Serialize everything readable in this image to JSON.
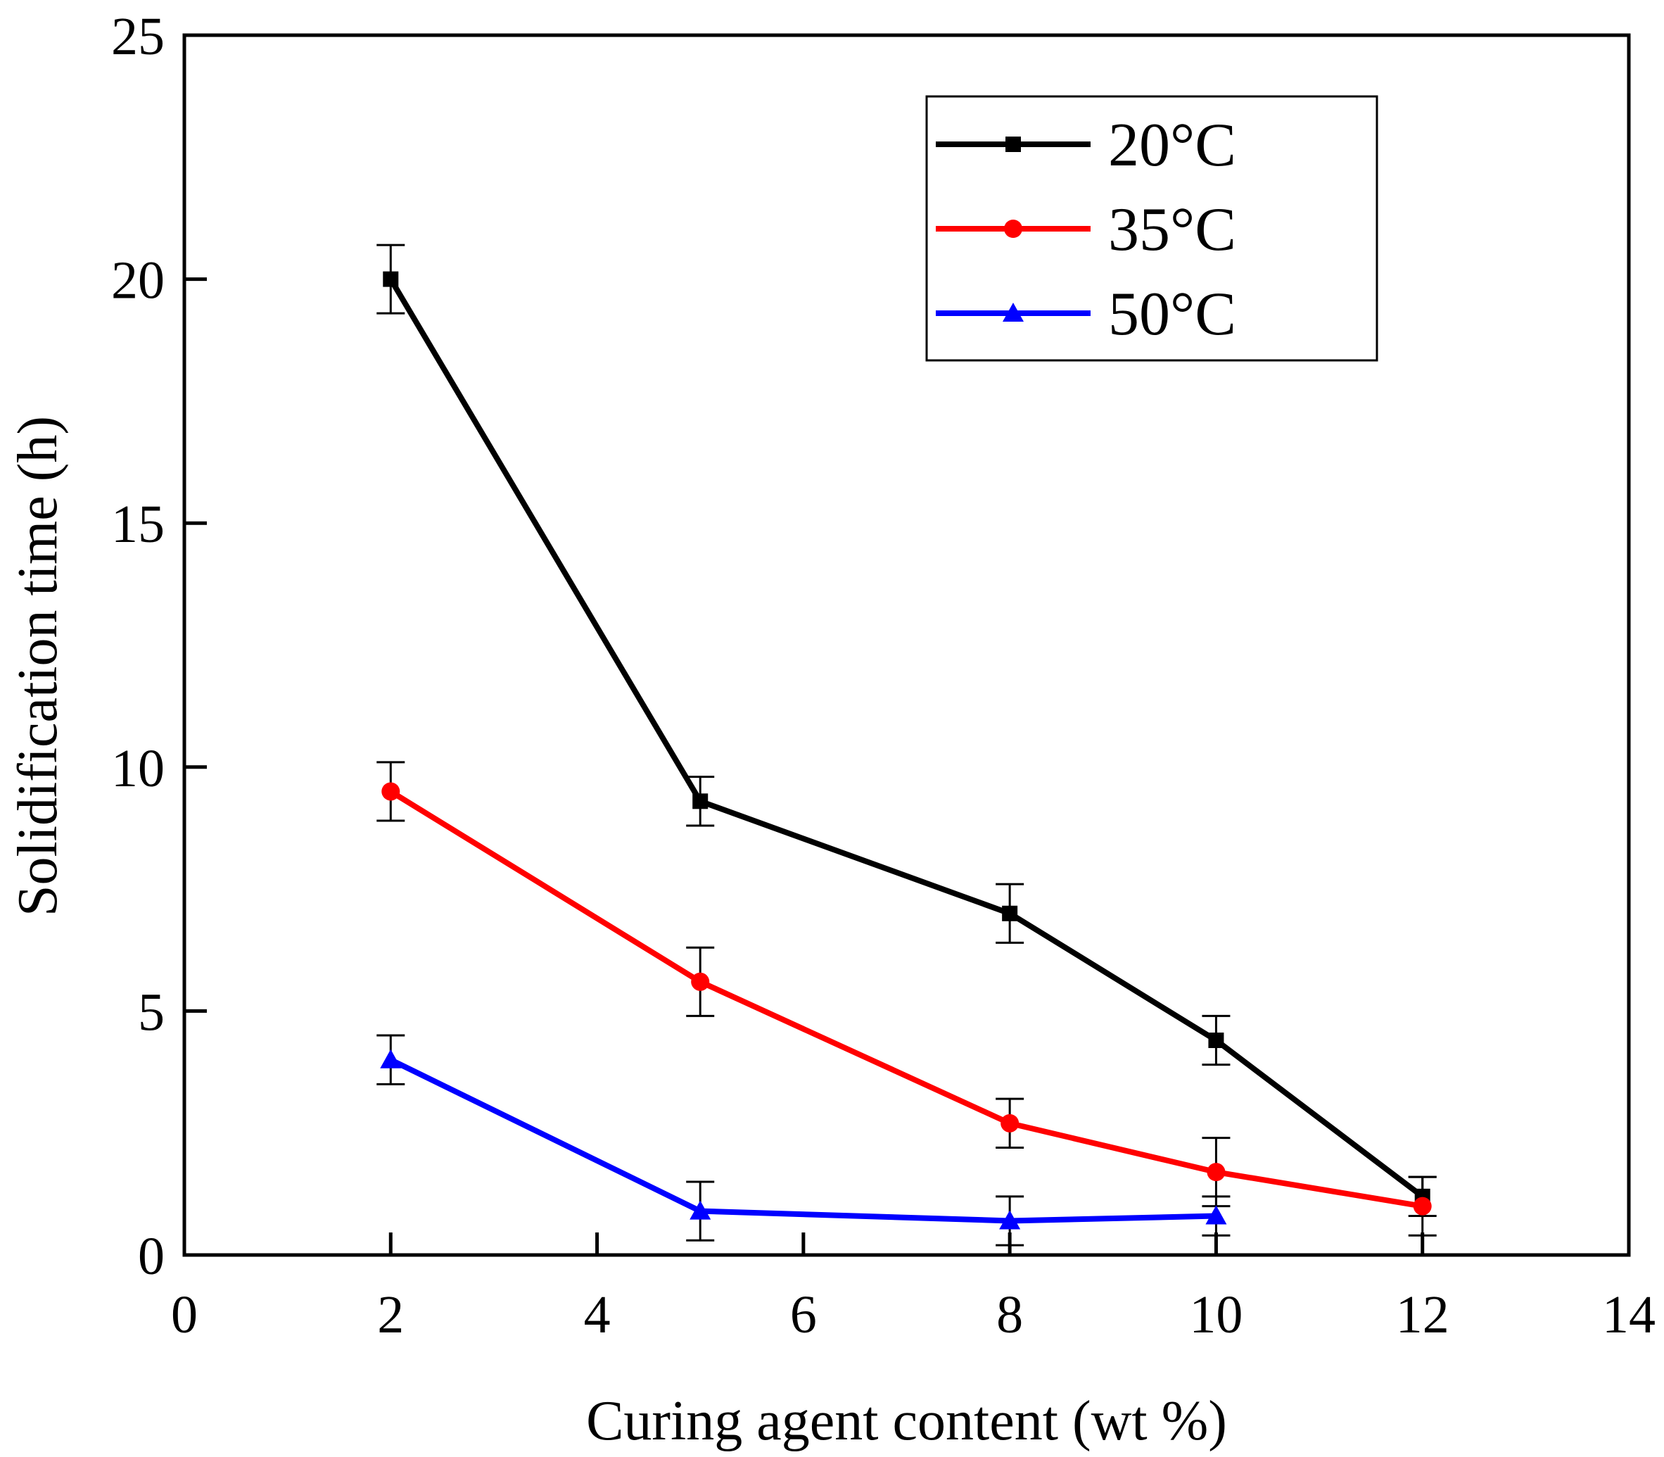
{
  "chart_data": {
    "type": "line",
    "title": "",
    "xlabel": "Curing agent content (wt %)",
    "ylabel": "Solidification time (h)",
    "xlim": [
      0,
      14
    ],
    "ylim": [
      0,
      25
    ],
    "xticks": [
      0,
      2,
      4,
      6,
      8,
      10,
      12,
      14
    ],
    "yticks": [
      0,
      5,
      10,
      15,
      20,
      25
    ],
    "xtick_labels": [
      "0",
      "2",
      "4",
      "6",
      "8",
      "10",
      "12",
      "14"
    ],
    "ytick_labels": [
      "0",
      "5",
      "10",
      "15",
      "20",
      "25"
    ],
    "grid": false,
    "legend_position": "top-right",
    "series": [
      {
        "name": "20°C",
        "color": "#000000",
        "marker": "square",
        "x": [
          2,
          5,
          8,
          10,
          12
        ],
        "y": [
          20.0,
          9.3,
          7.0,
          4.4,
          1.2
        ],
        "error": [
          0.7,
          0.5,
          0.6,
          0.5,
          0.4
        ]
      },
      {
        "name": "35°C",
        "color": "#ff0000",
        "marker": "circle",
        "x": [
          2,
          5,
          8,
          10,
          12
        ],
        "y": [
          9.5,
          5.6,
          2.7,
          1.7,
          1.0
        ],
        "error": [
          0.6,
          0.7,
          0.5,
          0.7,
          0.6
        ]
      },
      {
        "name": "50°C",
        "color": "#0000ff",
        "marker": "triangle",
        "x": [
          2,
          5,
          8,
          10
        ],
        "y": [
          4.0,
          0.9,
          0.7,
          0.8
        ],
        "error": [
          0.5,
          0.6,
          0.5,
          0.4
        ]
      }
    ]
  }
}
